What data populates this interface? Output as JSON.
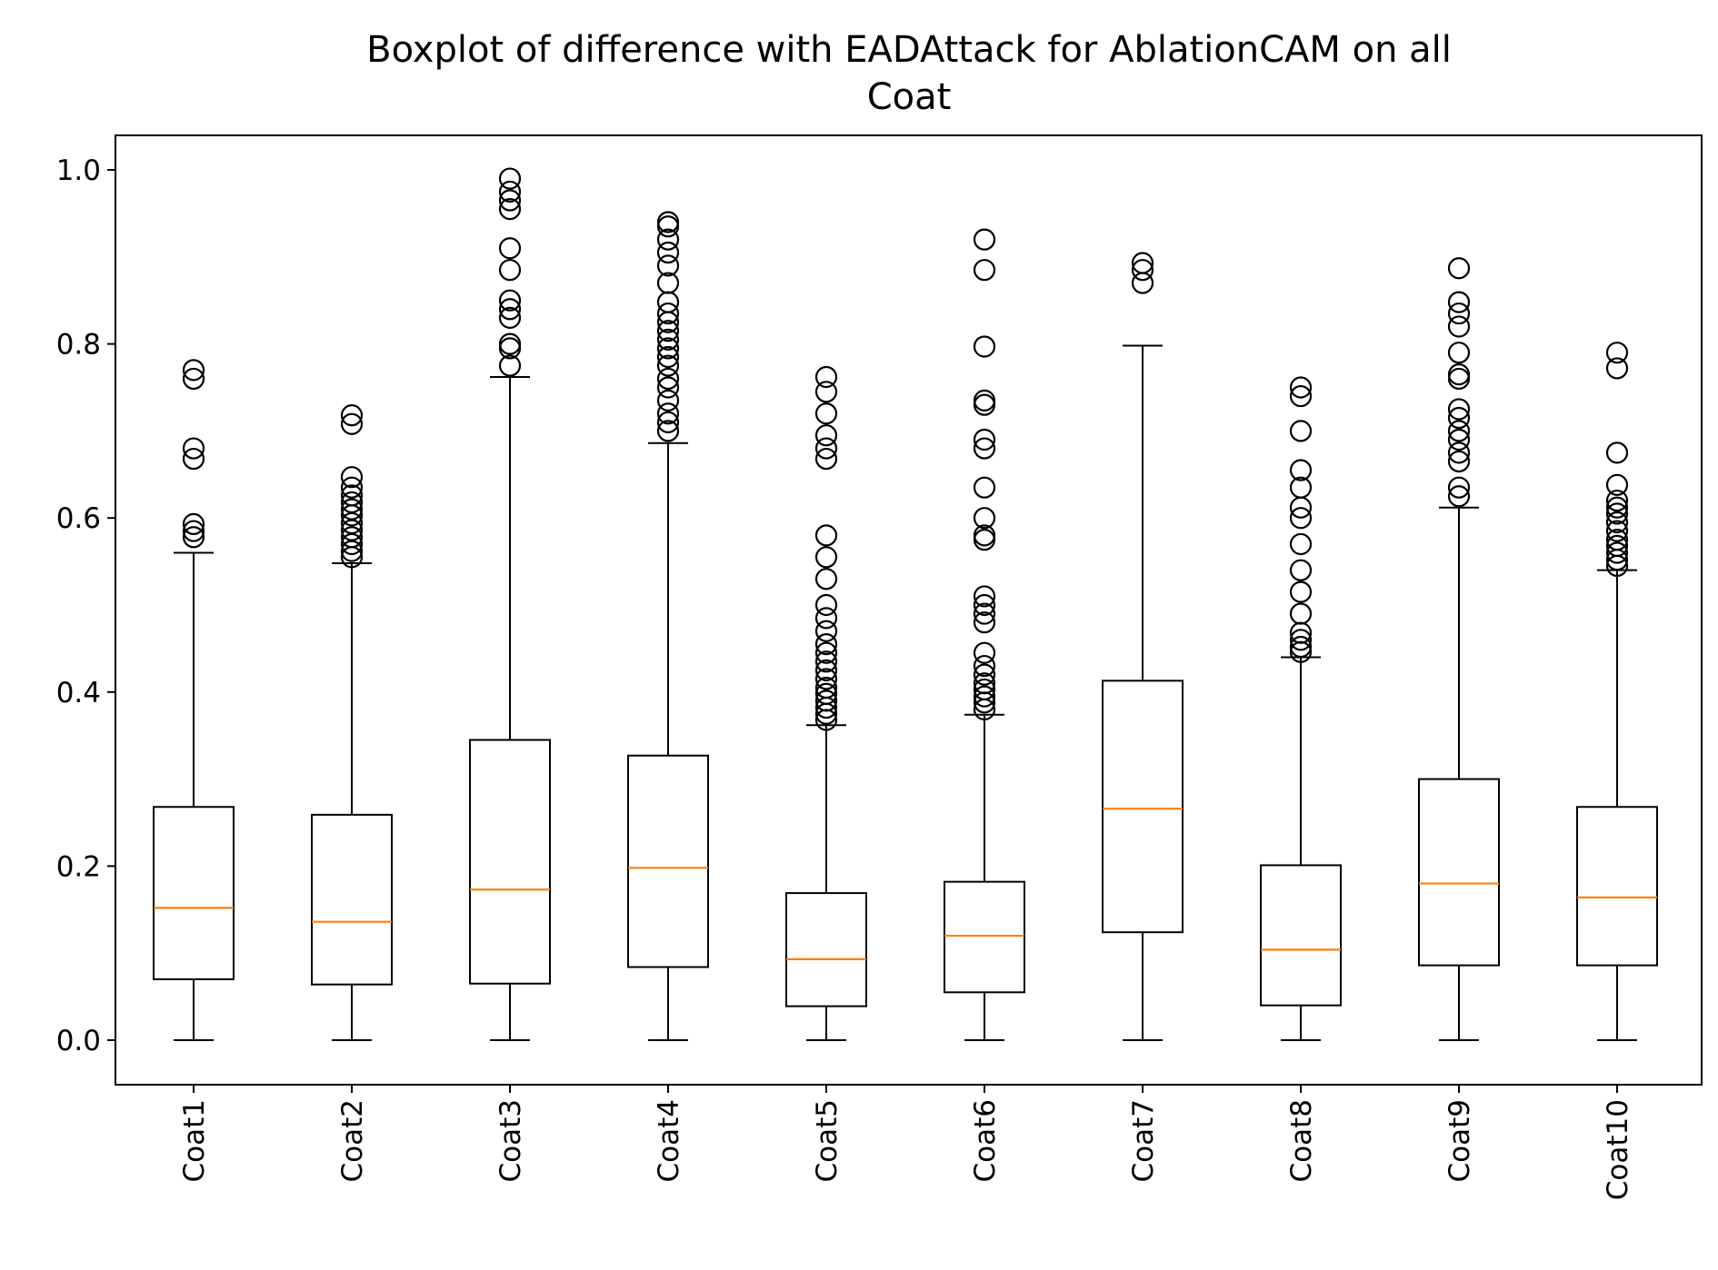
{
  "chart_data": {
    "type": "boxplot",
    "title_lines": [
      "Boxplot of difference with EADAttack for AblationCAM on all",
      "Coat"
    ],
    "xlabel": "",
    "ylabel": "",
    "ylim": [
      -0.05,
      1.04
    ],
    "yticks": [
      "0.0",
      "0.2",
      "0.4",
      "0.6",
      "0.8",
      "1.0"
    ],
    "ytick_values": [
      0.0,
      0.2,
      0.4,
      0.6,
      0.8,
      1.0
    ],
    "grid": false,
    "colors": {
      "box": "#000000",
      "median": "#ff7f0e",
      "flier": "#000000"
    },
    "categories": [
      "Coat1",
      "Coat2",
      "Coat3",
      "Coat4",
      "Coat5",
      "Coat6",
      "Coat7",
      "Coat8",
      "Coat9",
      "Coat10"
    ],
    "boxes": [
      {
        "name": "Coat1",
        "whisker_low": 0.0,
        "q1": 0.07,
        "median": 0.152,
        "q3": 0.268,
        "whisker_high": 0.56,
        "fliers": [
          0.578,
          0.585,
          0.593,
          0.668,
          0.68,
          0.76,
          0.77
        ]
      },
      {
        "name": "Coat2",
        "whisker_low": 0.0,
        "q1": 0.064,
        "median": 0.136,
        "q3": 0.259,
        "whisker_high": 0.548,
        "fliers": [
          0.555,
          0.562,
          0.57,
          0.578,
          0.586,
          0.594,
          0.603,
          0.61,
          0.618,
          0.626,
          0.635,
          0.647,
          0.708,
          0.718
        ]
      },
      {
        "name": "Coat3",
        "whisker_low": 0.0,
        "q1": 0.065,
        "median": 0.173,
        "q3": 0.345,
        "whisker_high": 0.762,
        "fliers": [
          0.775,
          0.795,
          0.8,
          0.83,
          0.84,
          0.85,
          0.885,
          0.91,
          0.955,
          0.965,
          0.975,
          0.99
        ]
      },
      {
        "name": "Coat4",
        "whisker_low": 0.0,
        "q1": 0.084,
        "median": 0.198,
        "q3": 0.327,
        "whisker_high": 0.686,
        "fliers": [
          0.7,
          0.71,
          0.72,
          0.735,
          0.75,
          0.76,
          0.775,
          0.785,
          0.795,
          0.805,
          0.815,
          0.825,
          0.835,
          0.848,
          0.87,
          0.89,
          0.905,
          0.92,
          0.935,
          0.94
        ]
      },
      {
        "name": "Coat5",
        "whisker_low": 0.0,
        "q1": 0.039,
        "median": 0.093,
        "q3": 0.169,
        "whisker_high": 0.362,
        "fliers": [
          0.368,
          0.375,
          0.382,
          0.39,
          0.398,
          0.405,
          0.415,
          0.425,
          0.435,
          0.445,
          0.455,
          0.47,
          0.485,
          0.5,
          0.53,
          0.555,
          0.58,
          0.668,
          0.68,
          0.695,
          0.72,
          0.745,
          0.762
        ]
      },
      {
        "name": "Coat6",
        "whisker_low": 0.0,
        "q1": 0.055,
        "median": 0.12,
        "q3": 0.182,
        "whisker_high": 0.374,
        "fliers": [
          0.38,
          0.388,
          0.395,
          0.403,
          0.41,
          0.42,
          0.43,
          0.445,
          0.48,
          0.49,
          0.5,
          0.51,
          0.575,
          0.58,
          0.6,
          0.635,
          0.68,
          0.69,
          0.73,
          0.735,
          0.797,
          0.885,
          0.92
        ]
      },
      {
        "name": "Coat7",
        "whisker_low": 0.0,
        "q1": 0.124,
        "median": 0.266,
        "q3": 0.413,
        "whisker_high": 0.798,
        "fliers": [
          0.87,
          0.885,
          0.893
        ]
      },
      {
        "name": "Coat8",
        "whisker_low": 0.0,
        "q1": 0.04,
        "median": 0.104,
        "q3": 0.201,
        "whisker_high": 0.44,
        "fliers": [
          0.446,
          0.452,
          0.46,
          0.468,
          0.49,
          0.515,
          0.54,
          0.57,
          0.6,
          0.612,
          0.635,
          0.655,
          0.7,
          0.74,
          0.75
        ]
      },
      {
        "name": "Coat9",
        "whisker_low": 0.0,
        "q1": 0.086,
        "median": 0.18,
        "q3": 0.3,
        "whisker_high": 0.612,
        "fliers": [
          0.625,
          0.635,
          0.665,
          0.675,
          0.69,
          0.7,
          0.715,
          0.725,
          0.76,
          0.765,
          0.79,
          0.82,
          0.835,
          0.848,
          0.887
        ]
      },
      {
        "name": "Coat10",
        "whisker_low": 0.0,
        "q1": 0.086,
        "median": 0.164,
        "q3": 0.268,
        "whisker_high": 0.54,
        "fliers": [
          0.545,
          0.552,
          0.56,
          0.568,
          0.575,
          0.585,
          0.595,
          0.605,
          0.612,
          0.62,
          0.638,
          0.675,
          0.772,
          0.79
        ]
      }
    ]
  }
}
